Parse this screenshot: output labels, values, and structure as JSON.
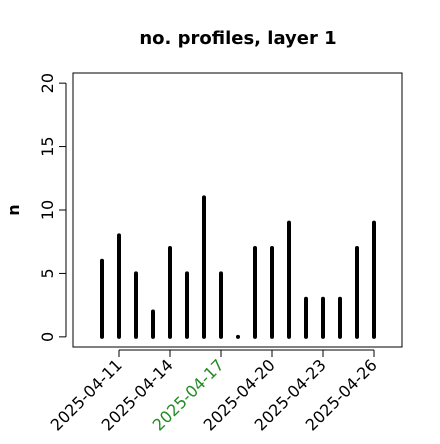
{
  "chart_data": {
    "type": "spike",
    "title": "no. profiles, layer 1",
    "y_label": "n",
    "categories": [
      null,
      "2025-04-11",
      null,
      null,
      "2025-04-14",
      null,
      null,
      "2025-04-17",
      null,
      null,
      "2025-04-20",
      null,
      null,
      "2025-04-23",
      null,
      null,
      "2025-04-26"
    ],
    "category_label_colors": [
      null,
      "#000000",
      null,
      null,
      "#000000",
      null,
      null,
      "#228b22",
      null,
      null,
      "#000000",
      null,
      null,
      "#000000",
      null,
      null,
      "#000000"
    ],
    "values": [
      6,
      8,
      5,
      2,
      7,
      5,
      11,
      5,
      0,
      7,
      7,
      9,
      3,
      3,
      3,
      7,
      9
    ],
    "color": "#000000",
    "ylim": [
      -0.8,
      20.8
    ],
    "yticks": [
      0,
      5,
      10,
      15,
      20
    ]
  }
}
